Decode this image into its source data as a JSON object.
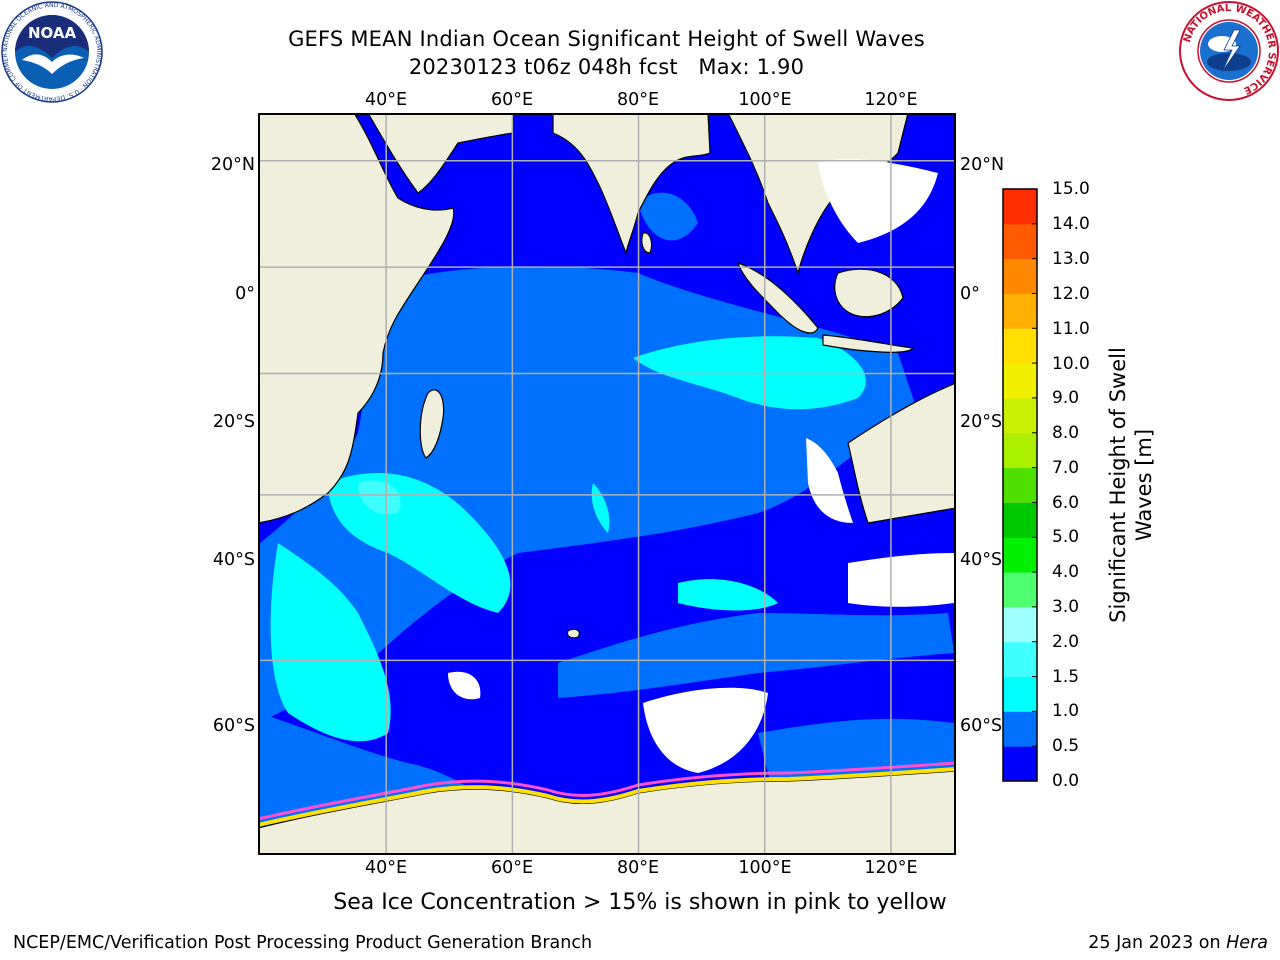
{
  "title": {
    "line1": "GEFS MEAN Indian Ocean Significant Height of Swell Waves",
    "line2": "20230123 t06z 048h fcst   Max: 1.90"
  },
  "map": {
    "lon_ticks": [
      "40°E",
      "60°E",
      "80°E",
      "100°E",
      "120°E"
    ],
    "lat_ticks": [
      "20°N",
      "0°",
      "20°S",
      "40°S",
      "60°S"
    ],
    "lon_values": [
      40,
      60,
      80,
      100,
      120
    ],
    "lat_values": [
      20,
      0,
      -20,
      -40,
      -60
    ],
    "lon_range": [
      20,
      130
    ],
    "lat_range": [
      -74,
      28
    ],
    "grid": true,
    "land_color": "#efefdc",
    "ocean_color": "#0000ff"
  },
  "colorbar": {
    "title": "Significant Height of Swell Waves [m]",
    "title_line1": "Significant Height of Swell",
    "title_line2": "Waves [m]",
    "labels": [
      "15.0",
      "14.0",
      "13.0",
      "12.0",
      "11.0",
      "10.0",
      "9.0",
      "8.0",
      "7.0",
      "6.0",
      "5.0",
      "4.0",
      "3.0",
      "2.0",
      "1.5",
      "1.0",
      "0.5",
      "0.0"
    ],
    "colors": [
      "#0000ff",
      "#0070ff",
      "#00ffff",
      "#40ffff",
      "#a0ffff",
      "#50ff70",
      "#00f000",
      "#00c800",
      "#50e000",
      "#aaee00",
      "#c8f000",
      "#f0f000",
      "#ffe000",
      "#ffb000",
      "#ff8800",
      "#ff5a00",
      "#ff2e00",
      "#ff0000"
    ]
  },
  "caption": "Sea Ice Concentration > 15% is shown in pink to yellow",
  "footer": {
    "left": "NCEP/EMC/Verification Post Processing Product Generation Branch",
    "date": "25 Jan 2023 on ",
    "machine": "Hera"
  },
  "logos": {
    "noaa_text": "NOAA",
    "noaa_ring": "NATIONAL OCEANIC AND ATMOSPHERIC ADMINISTRATION · U.S. DEPARTMENT OF COMMERCE",
    "nws_ring": "NATIONAL WEATHER SERVICE"
  }
}
